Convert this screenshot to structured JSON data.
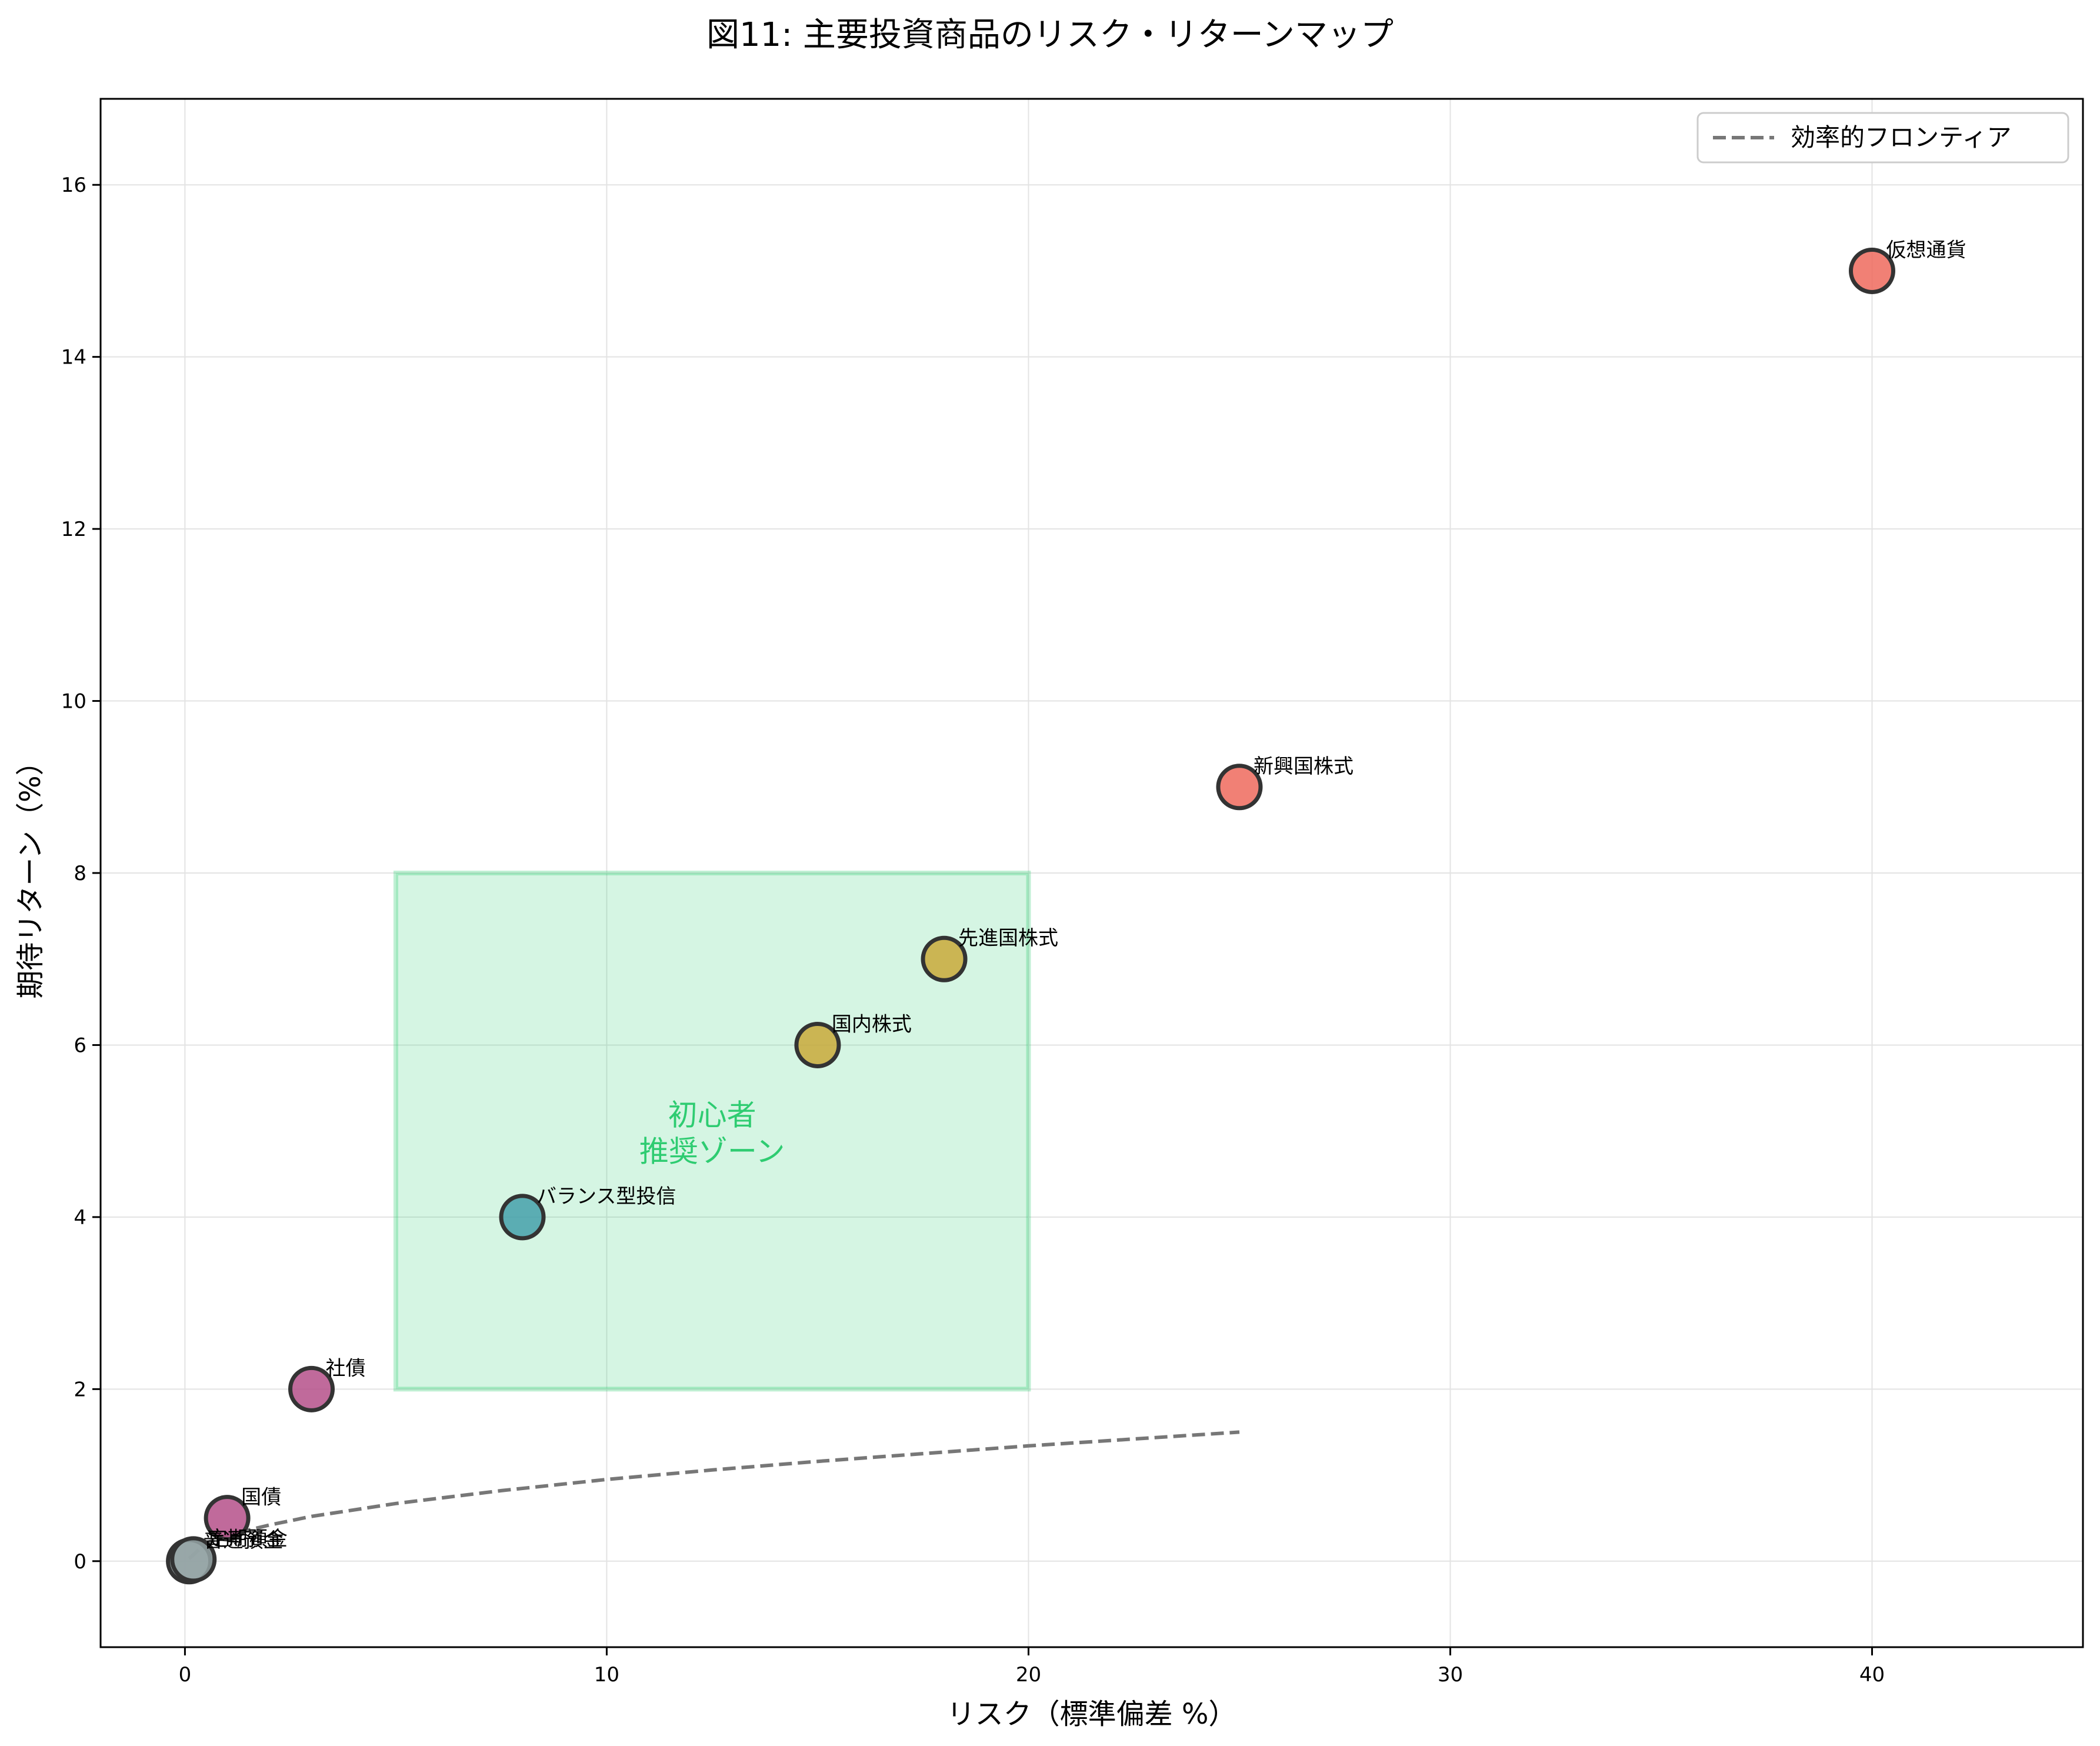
{
  "chart_data": {
    "type": "scatter",
    "title": "図11: 主要投資商品のリスク・リターンマップ",
    "xlabel": "リスク（標準偏差 %）",
    "ylabel": "期待リターン（%）",
    "xlim": [
      -2,
      45
    ],
    "ylim": [
      -1,
      17
    ],
    "xticks": [
      0,
      10,
      20,
      30,
      40
    ],
    "yticks": [
      0,
      2,
      4,
      6,
      8,
      10,
      12,
      14,
      16
    ],
    "grid": true,
    "legend_position": "upper-right",
    "points": [
      {
        "label": "普通預金",
        "x": 0.1,
        "y": 0.0,
        "color": "#95a5a6"
      },
      {
        "label": "定期預金",
        "x": 0.2,
        "y": 0.02,
        "color": "#95a5a6"
      },
      {
        "label": "国債",
        "x": 1,
        "y": 0.5,
        "color": "#b5508a"
      },
      {
        "label": "社債",
        "x": 3,
        "y": 2,
        "color": "#b5508a"
      },
      {
        "label": "バランス型投信",
        "x": 8,
        "y": 4,
        "color": "#45a0aa"
      },
      {
        "label": "国内株式",
        "x": 15,
        "y": 6,
        "color": "#c9a93a"
      },
      {
        "label": "先進国株式",
        "x": 18,
        "y": 7,
        "color": "#c9a93a"
      },
      {
        "label": "新興国株式",
        "x": 25,
        "y": 9,
        "color": "#ee6a5d"
      },
      {
        "label": "仮想通貨",
        "x": 40,
        "y": 15,
        "color": "#ee6a5d"
      }
    ],
    "frontier": {
      "name": "効率的フロンティア",
      "color": "#777777",
      "x": [
        0.1,
        0.5,
        1,
        2,
        3,
        5,
        7.5,
        10,
        12.5,
        15,
        17.5,
        20,
        22.5,
        25
      ],
      "y": [
        0.03,
        0.21,
        0.3,
        0.42,
        0.52,
        0.67,
        0.82,
        0.95,
        1.06,
        1.16,
        1.25,
        1.34,
        1.42,
        1.5
      ]
    },
    "zone": {
      "label_line1": "初心者",
      "label_line2": "推奨ゾーン",
      "x_range": [
        5,
        20
      ],
      "y_range": [
        2,
        8
      ],
      "color": "#2ecc71"
    }
  }
}
